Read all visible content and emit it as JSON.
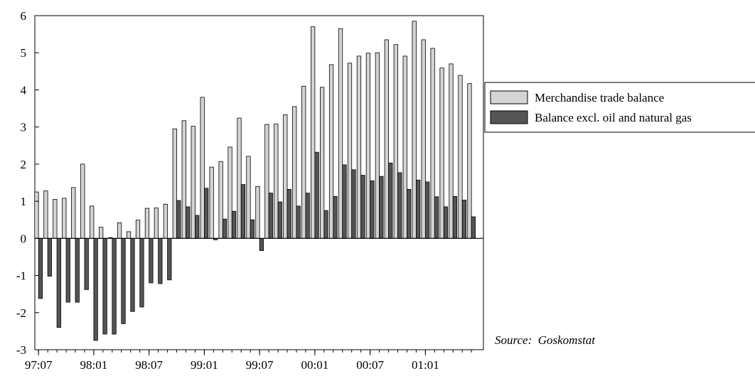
{
  "chart_data": {
    "type": "bar",
    "title": "",
    "xlabel": "",
    "ylabel": "",
    "ylim": [
      -3,
      6
    ],
    "yticks": [
      6,
      5,
      4,
      3,
      2,
      1,
      0,
      -1,
      -2,
      -3
    ],
    "ytick_labels": [
      "6",
      "5",
      "4",
      "3",
      "2",
      "1",
      "0",
      "-1",
      "-2",
      "-3"
    ],
    "xtick_labels": [
      "97:07",
      "98:01",
      "98:07",
      "99:01",
      "99:07",
      "00:01",
      "00:07",
      "01:01"
    ],
    "xtick_indices": [
      0,
      6,
      12,
      18,
      24,
      30,
      36,
      42
    ],
    "categories": [
      "97:07",
      "97:08",
      "97:09",
      "97:10",
      "97:11",
      "97:12",
      "98:01",
      "98:02",
      "98:03",
      "98:04",
      "98:05",
      "98:06",
      "98:07",
      "98:08",
      "98:09",
      "98:10",
      "98:11",
      "98:12",
      "99:01",
      "99:02",
      "99:03",
      "99:04",
      "99:05",
      "99:06",
      "99:07",
      "99:08",
      "99:09",
      "99:10",
      "99:11",
      "99:12",
      "00:01",
      "00:02",
      "00:03",
      "00:04",
      "00:05",
      "00:06",
      "00:07",
      "00:08",
      "00:09",
      "00:10",
      "00:11",
      "00:12",
      "01:01",
      "01:02",
      "01:03",
      "01:04",
      "01:05",
      "01:06"
    ],
    "series": [
      {
        "name": "Merchandise trade balance",
        "color": "#d4d4d4",
        "values": [
          1.25,
          1.28,
          1.05,
          1.08,
          1.37,
          2.0,
          0.87,
          0.3,
          0.02,
          0.42,
          0.18,
          0.49,
          0.81,
          0.82,
          0.92,
          2.95,
          3.17,
          3.02,
          3.8,
          1.92,
          2.07,
          2.46,
          3.24,
          2.21,
          1.4,
          3.07,
          3.08,
          3.33,
          3.55,
          4.1,
          5.7,
          4.07,
          4.68,
          5.65,
          4.72,
          4.91,
          4.99,
          5.0,
          5.35,
          5.22,
          4.91,
          5.85,
          5.35,
          5.12,
          4.59,
          4.7,
          4.39,
          4.17
        ]
      },
      {
        "name": "Balance excl. oil and natural gas",
        "color": "#555555",
        "values": [
          -1.62,
          -1.02,
          -2.4,
          -1.72,
          -1.72,
          -1.38,
          -2.75,
          -2.58,
          -2.58,
          -2.3,
          -1.97,
          -1.85,
          -1.2,
          -1.22,
          -1.12,
          1.02,
          0.85,
          0.62,
          1.35,
          -0.04,
          0.52,
          0.73,
          1.45,
          0.5,
          -0.33,
          1.22,
          0.98,
          1.32,
          0.87,
          1.22,
          2.32,
          0.75,
          1.13,
          1.98,
          1.85,
          1.7,
          1.55,
          1.67,
          2.03,
          1.77,
          1.32,
          1.57,
          1.52,
          1.12,
          0.85,
          1.13,
          1.03,
          0.58
        ]
      }
    ],
    "legend_position": "right",
    "grid": false
  },
  "source_note": "Source:  Goskomstat"
}
